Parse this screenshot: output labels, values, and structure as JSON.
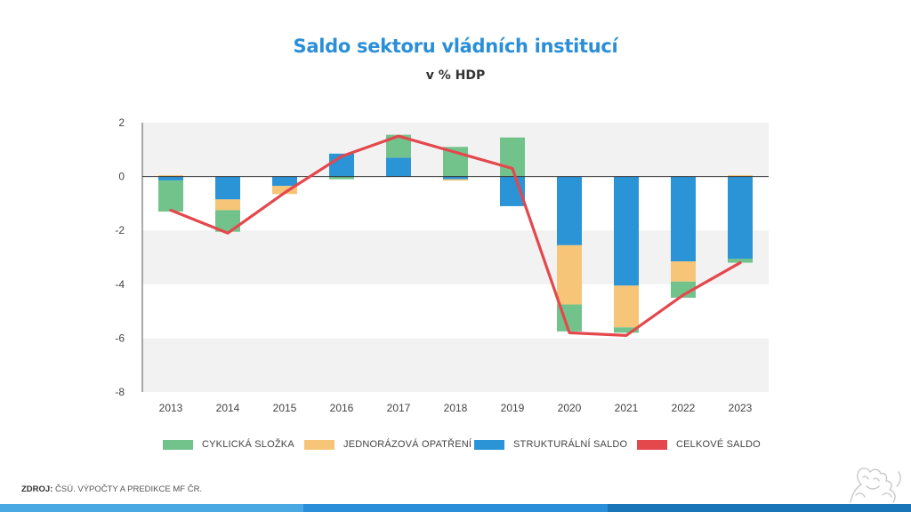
{
  "chart_data": {
    "type": "bar",
    "title": "Saldo sektoru vládních institucí",
    "subtitle": "v % HDP",
    "categories": [
      "2013",
      "2014",
      "2015",
      "2016",
      "2017",
      "2018",
      "2019",
      "2020",
      "2021",
      "2022",
      "2023"
    ],
    "ylim": [
      -8,
      2
    ],
    "yticks": [
      2,
      0,
      -2,
      -4,
      -6,
      -8
    ],
    "stacked": true,
    "series": [
      {
        "name": "STRUKTURÁLNÍ SALDO",
        "color": "#2b94d6",
        "kind": "bar",
        "values": [
          -0.15,
          -0.85,
          -0.35,
          0.85,
          0.7,
          -0.1,
          -1.1,
          -2.55,
          -4.05,
          -3.15,
          -3.05
        ]
      },
      {
        "name": "JEDNORÁZOVÁ OPATŘENÍ",
        "color": "#f7c577",
        "kind": "bar",
        "values": [
          0.05,
          -0.4,
          -0.3,
          0.0,
          0.0,
          -0.05,
          0.0,
          -2.2,
          -1.55,
          -0.75,
          0.05
        ]
      },
      {
        "name": "CYKLICKÁ SLOŽKA",
        "color": "#72c28c",
        "kind": "bar",
        "values": [
          -1.15,
          -0.8,
          0.0,
          -0.1,
          0.85,
          1.1,
          1.45,
          -1.0,
          -0.2,
          -0.6,
          -0.15
        ]
      },
      {
        "name": "CELKOVÉ SALDO",
        "color": "#e4474c",
        "kind": "line",
        "values": [
          -1.25,
          -2.1,
          -0.6,
          0.75,
          1.5,
          0.9,
          0.3,
          -5.8,
          -5.9,
          -4.4,
          -3.2
        ]
      }
    ],
    "legend_order": [
      "CYKLICKÁ SLOŽKA",
      "JEDNORÁZOVÁ OPATŘENÍ",
      "STRUKTURÁLNÍ SALDO",
      "CELKOVÉ SALDO"
    ],
    "legend_position": "bottom",
    "band_colors": [
      "#f2f2f2",
      "#ffffff"
    ]
  },
  "source": {
    "label": "ZDROJ:",
    "text": "ČSÚ. VÝPOČTY A PREDIKCE MF ČR."
  },
  "footer_colors": [
    "#4aa9e2",
    "#2a8fd8",
    "#1a74b8"
  ]
}
